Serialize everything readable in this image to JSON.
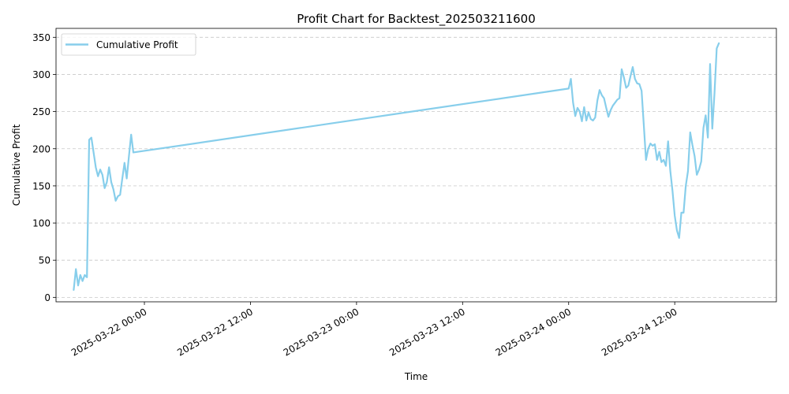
{
  "chart_data": {
    "type": "line",
    "title": "Profit Chart for Backtest_202503211600",
    "xlabel": "Time",
    "ylabel": "Cumulative Profit",
    "grid": "y",
    "legend_position": "top-left",
    "line_color": "#87ceeb",
    "ylim": [
      -6,
      362
    ],
    "xlim": [
      "2025-03-21 14:00",
      "2025-03-24 23:30"
    ],
    "y_ticks": [
      0,
      50,
      100,
      150,
      200,
      250,
      300,
      350
    ],
    "y_tick_labels": [
      "0",
      "50",
      "100",
      "150",
      "200",
      "250",
      "300",
      "350"
    ],
    "x_ticks": [
      "2025-03-22 00:00",
      "2025-03-22 12:00",
      "2025-03-23 00:00",
      "2025-03-23 12:00",
      "2025-03-24 00:00",
      "2025-03-24 12:00"
    ],
    "x_tick_labels": [
      "2025-03-22 00:00",
      "2025-03-22 12:00",
      "2025-03-23 00:00",
      "2025-03-23 12:00",
      "2025-03-24 00:00",
      "2025-03-24 12:00"
    ],
    "series": [
      {
        "name": "Cumulative Profit",
        "points": [
          [
            "2025-03-21 16:00",
            10
          ],
          [
            "2025-03-21 16:15",
            38
          ],
          [
            "2025-03-21 16:30",
            16
          ],
          [
            "2025-03-21 16:45",
            30
          ],
          [
            "2025-03-21 17:00",
            22
          ],
          [
            "2025-03-21 17:15",
            30
          ],
          [
            "2025-03-21 17:30",
            27
          ],
          [
            "2025-03-21 17:45",
            212
          ],
          [
            "2025-03-21 18:00",
            215
          ],
          [
            "2025-03-21 18:15",
            195
          ],
          [
            "2025-03-21 18:30",
            175
          ],
          [
            "2025-03-21 18:45",
            163
          ],
          [
            "2025-03-21 19:00",
            172
          ],
          [
            "2025-03-21 19:15",
            165
          ],
          [
            "2025-03-21 19:30",
            147
          ],
          [
            "2025-03-21 19:45",
            155
          ],
          [
            "2025-03-21 20:00",
            175
          ],
          [
            "2025-03-21 20:15",
            155
          ],
          [
            "2025-03-21 20:30",
            145
          ],
          [
            "2025-03-21 20:45",
            130
          ],
          [
            "2025-03-21 21:00",
            136
          ],
          [
            "2025-03-21 21:15",
            138
          ],
          [
            "2025-03-21 21:30",
            160
          ],
          [
            "2025-03-21 21:45",
            181
          ],
          [
            "2025-03-21 22:00",
            160
          ],
          [
            "2025-03-21 22:15",
            190
          ],
          [
            "2025-03-21 22:30",
            219
          ],
          [
            "2025-03-21 22:45",
            195
          ],
          [
            "2025-03-24 00:00",
            281
          ],
          [
            "2025-03-24 00:15",
            294
          ],
          [
            "2025-03-24 00:30",
            262
          ],
          [
            "2025-03-24 00:45",
            244
          ],
          [
            "2025-03-24 01:00",
            255
          ],
          [
            "2025-03-24 01:15",
            250
          ],
          [
            "2025-03-24 01:30",
            237
          ],
          [
            "2025-03-24 01:45",
            256
          ],
          [
            "2025-03-24 02:00",
            238
          ],
          [
            "2025-03-24 02:15",
            249
          ],
          [
            "2025-03-24 02:30",
            240
          ],
          [
            "2025-03-24 02:45",
            238
          ],
          [
            "2025-03-24 03:00",
            242
          ],
          [
            "2025-03-24 03:15",
            265
          ],
          [
            "2025-03-24 03:30",
            279
          ],
          [
            "2025-03-24 03:45",
            272
          ],
          [
            "2025-03-24 04:00",
            268
          ],
          [
            "2025-03-24 04:15",
            255
          ],
          [
            "2025-03-24 04:30",
            243
          ],
          [
            "2025-03-24 04:45",
            252
          ],
          [
            "2025-03-24 05:00",
            258
          ],
          [
            "2025-03-24 05:15",
            262
          ],
          [
            "2025-03-24 05:30",
            266
          ],
          [
            "2025-03-24 05:45",
            268
          ],
          [
            "2025-03-24 06:00",
            307
          ],
          [
            "2025-03-24 06:15",
            296
          ],
          [
            "2025-03-24 06:30",
            282
          ],
          [
            "2025-03-24 06:45",
            285
          ],
          [
            "2025-03-24 07:00",
            298
          ],
          [
            "2025-03-24 07:15",
            310
          ],
          [
            "2025-03-24 07:30",
            294
          ],
          [
            "2025-03-24 07:45",
            288
          ],
          [
            "2025-03-24 08:00",
            287
          ],
          [
            "2025-03-24 08:15",
            278
          ],
          [
            "2025-03-24 08:30",
            232
          ],
          [
            "2025-03-24 08:45",
            185
          ],
          [
            "2025-03-24 09:00",
            200
          ],
          [
            "2025-03-24 09:15",
            207
          ],
          [
            "2025-03-24 09:30",
            204
          ],
          [
            "2025-03-24 09:45",
            206
          ],
          [
            "2025-03-24 10:00",
            185
          ],
          [
            "2025-03-24 10:15",
            196
          ],
          [
            "2025-03-24 10:30",
            182
          ],
          [
            "2025-03-24 10:45",
            185
          ],
          [
            "2025-03-24 11:00",
            177
          ],
          [
            "2025-03-24 11:15",
            210
          ],
          [
            "2025-03-24 11:30",
            170
          ],
          [
            "2025-03-24 11:45",
            143
          ],
          [
            "2025-03-24 12:00",
            110
          ],
          [
            "2025-03-24 12:15",
            90
          ],
          [
            "2025-03-24 12:30",
            80
          ],
          [
            "2025-03-24 12:45",
            114
          ],
          [
            "2025-03-24 13:00",
            114
          ],
          [
            "2025-03-24 13:15",
            150
          ],
          [
            "2025-03-24 13:30",
            170
          ],
          [
            "2025-03-24 13:45",
            222
          ],
          [
            "2025-03-24 14:00",
            205
          ],
          [
            "2025-03-24 14:15",
            190
          ],
          [
            "2025-03-24 14:30",
            165
          ],
          [
            "2025-03-24 14:45",
            172
          ],
          [
            "2025-03-24 15:00",
            183
          ],
          [
            "2025-03-24 15:15",
            228
          ],
          [
            "2025-03-24 15:30",
            245
          ],
          [
            "2025-03-24 15:45",
            215
          ],
          [
            "2025-03-24 16:00",
            314
          ],
          [
            "2025-03-24 16:15",
            227
          ],
          [
            "2025-03-24 16:30",
            275
          ],
          [
            "2025-03-24 16:45",
            335
          ],
          [
            "2025-03-24 17:00",
            342
          ]
        ]
      }
    ]
  }
}
